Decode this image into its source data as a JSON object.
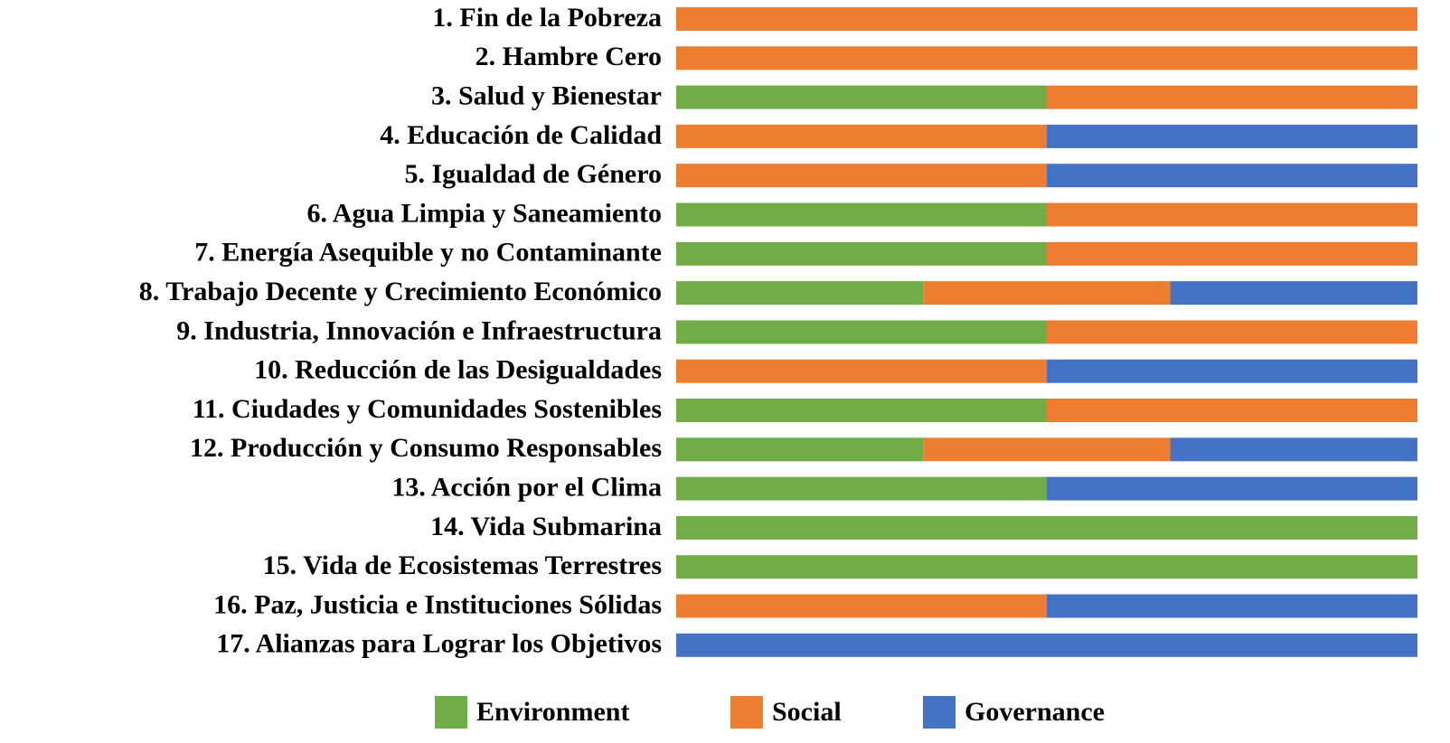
{
  "chart_data": {
    "type": "stacked_barh",
    "categories": [
      "1. Fin de la Pobreza",
      "2. Hambre Cero",
      "3. Salud y Bienestar",
      "4. Educación de Calidad",
      "5. Igualdad de Género",
      "6. Agua Limpia y Saneamiento",
      "7. Energía Asequible y no Contaminante",
      "8. Trabajo Decente y Crecimiento Económico",
      "9. Industria, Innovación e Infraestructura",
      "10. Reducción de las Desigualdades",
      "11. Ciudades y Comunidades Sostenibles",
      "12. Producción y Consumo Responsables",
      "13. Acción por el Clima",
      "14. Vida Submarina",
      "15. Vida de Ecosistemas Terrestres",
      "16. Paz, Justicia e Instituciones Sólidas",
      "17. Alianzas para Lograr los Objetivos"
    ],
    "series": [
      {
        "name": "Environment",
        "color": "#70ad47",
        "values": [
          0,
          0,
          50,
          0,
          0,
          50,
          50,
          33.33,
          50,
          0,
          50,
          33.33,
          50,
          100,
          100,
          0,
          0
        ]
      },
      {
        "name": "Social",
        "color": "#ed7d31",
        "values": [
          100,
          100,
          50,
          50,
          50,
          50,
          50,
          33.33,
          50,
          50,
          50,
          33.33,
          0,
          0,
          0,
          50,
          0
        ]
      },
      {
        "name": "Governance",
        "color": "#4472c4",
        "values": [
          0,
          0,
          0,
          50,
          50,
          0,
          0,
          33.33,
          0,
          50,
          0,
          33.33,
          50,
          0,
          0,
          50,
          100
        ]
      }
    ],
    "xlim": [
      0,
      100
    ],
    "legend": "bottom"
  }
}
